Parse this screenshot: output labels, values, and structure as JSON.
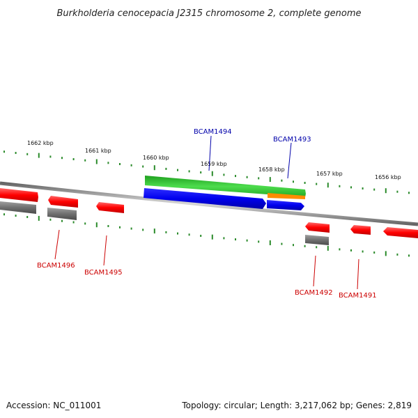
{
  "title": "Burkholderia cenocepacia J2315 chromosome 2, complete genome",
  "footer": {
    "accession": "Accession: NC_011001",
    "summary": "Topology: circular; Length: 3,217,062 bp; Genes: 2,819"
  },
  "ruler_labels": [
    "1662 kbp",
    "1661 kbp",
    "1660 kbp",
    "1659 kbp",
    "1658 kbp",
    "1657 kbp",
    "1656 kbp"
  ],
  "gene_labels": {
    "bcam1494": "BCAM1494",
    "bcam1493": "BCAM1493",
    "bcam1496": "BCAM1496",
    "bcam1495": "BCAM1495",
    "bcam1492": "BCAM1492",
    "bcam1491": "BCAM1491"
  },
  "colors": {
    "cds": "#ff0000",
    "gene_grey": "#707070",
    "highlight_gene": "#2fbf2f",
    "highlight_cds": "#0000ee",
    "orange": "#ff8c00",
    "label_blue": "#0000aa",
    "label_red": "#cc0000",
    "tick_green": "#2a8a2a",
    "backbone": "#808080"
  }
}
